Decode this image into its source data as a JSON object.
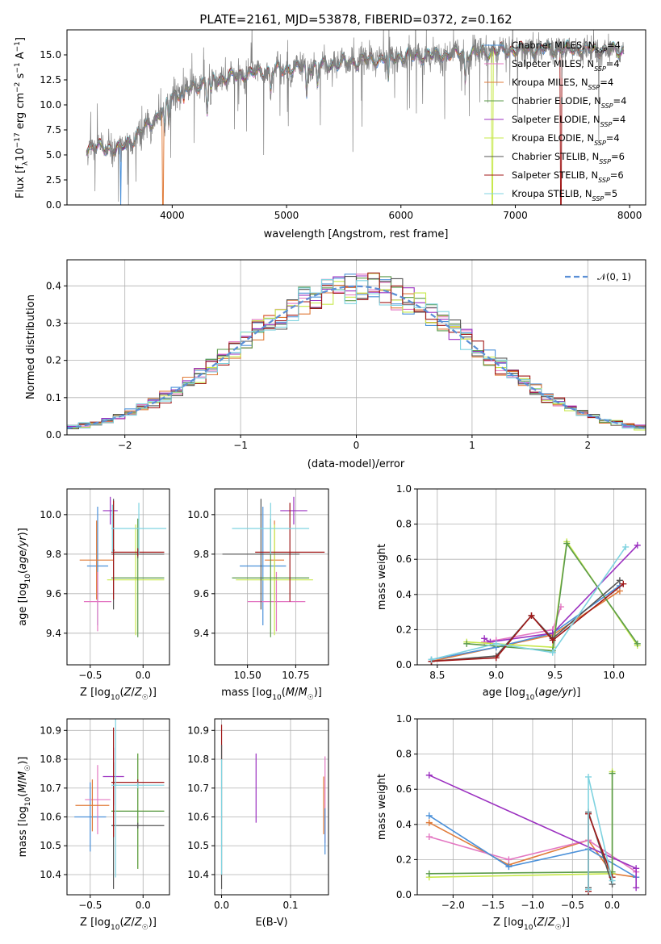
{
  "chart_data": [
    {
      "type": "line",
      "id": "spectrum",
      "title": "PLATE=2161, MJD=53878, FIBERID=0372, z=0.162",
      "xlabel": "wavelength [Angstrom, rest frame]",
      "ylabel": "Flux [f_λ 10^-17 erg cm^-2 s^-1 A^-1]",
      "xlim": [
        3080,
        8140
      ],
      "ylim": [
        0,
        17.5
      ],
      "xticks": [
        4000,
        5000,
        6000,
        7000,
        8000
      ],
      "yticks": [
        0.0,
        2.5,
        5.0,
        7.5,
        10.0,
        12.5,
        15.0
      ],
      "grid": false,
      "legend_position": "right",
      "data_color": "#808080",
      "data_wave_range": [
        3250,
        7950
      ],
      "continuum_anchors": [
        [
          3250,
          5.8
        ],
        [
          3550,
          5.6
        ],
        [
          3750,
          7.5
        ],
        [
          3900,
          9.2
        ],
        [
          4000,
          11.0
        ],
        [
          4150,
          11.6
        ],
        [
          4300,
          12.3
        ],
        [
          4600,
          13.0
        ],
        [
          5000,
          13.6
        ],
        [
          5500,
          14.2
        ],
        [
          6000,
          14.8
        ],
        [
          6500,
          15.1
        ],
        [
          7000,
          15.5
        ],
        [
          7500,
          15.6
        ],
        [
          7950,
          15.4
        ]
      ],
      "model_cutoffs": [
        {
          "series": "Chabrier MILES",
          "wave": 3550
        },
        {
          "series": "Kroupa MILES",
          "wave": 3920
        },
        {
          "series": "Kroupa ELODIE",
          "wave": 6800
        },
        {
          "series": "Salpeter STELIB",
          "wave": 7400
        }
      ],
      "series": [
        {
          "name": "Chabrier MILES, N_SSP=4",
          "color": "#4a90d9"
        },
        {
          "name": "Salpeter MILES, N_SSP=4",
          "color": "#e377c2"
        },
        {
          "name": "Kroupa MILES, N_SSP=4",
          "color": "#e07b39"
        },
        {
          "name": "Chabrier ELODIE, N_SSP=4",
          "color": "#5a9a4a"
        },
        {
          "name": "Salpeter ELODIE, N_SSP=4",
          "color": "#9b30c0"
        },
        {
          "name": "Kroupa ELODIE, N_SSP=4",
          "color": "#c7e84a"
        },
        {
          "name": "Chabrier STELIB, N_SSP=6",
          "color": "#555555"
        },
        {
          "name": "Salpeter STELIB, N_SSP=6",
          "color": "#a01818"
        },
        {
          "name": "Kroupa STELIB, N_SSP=5",
          "color": "#7fd3e0"
        }
      ]
    },
    {
      "type": "histogram",
      "id": "residuals",
      "xlabel": "(data-model)/error",
      "ylabel": "Normed distribution",
      "xlim": [
        -2.5,
        2.5
      ],
      "ylim": [
        0,
        0.47
      ],
      "xticks": [
        -2,
        -1,
        0,
        1,
        2
      ],
      "yticks": [
        0.0,
        0.1,
        0.2,
        0.3,
        0.4
      ],
      "grid": true,
      "bin_width": 0.1,
      "legend_label": "𝒩(0, 1)",
      "legend_position": "top-right",
      "gaussian_color": "#5b8fd6"
    },
    {
      "type": "errorbar",
      "id": "age-vs-Z",
      "xlabel": "Z [log10(Z/Z☉)]",
      "ylabel": "age [log10(age/yr)]",
      "xlim": [
        -0.72,
        0.25
      ],
      "ylim": [
        9.24,
        10.13
      ],
      "xticks": [
        -0.5,
        0.0
      ],
      "yticks": [
        9.4,
        9.6,
        9.8,
        10.0
      ],
      "grid": true,
      "points": [
        {
          "c": "#4a90d9",
          "x": -0.43,
          "xe": 0.1,
          "y": 9.74,
          "ye": 0.3
        },
        {
          "c": "#e377c2",
          "x": -0.43,
          "xe": 0.13,
          "y": 9.56,
          "ye": 0.15
        },
        {
          "c": "#e07b39",
          "x": -0.44,
          "xe": 0.16,
          "y": 9.77,
          "ye": 0.2
        },
        {
          "c": "#9b30c0",
          "x": -0.31,
          "xe": 0.07,
          "y": 10.02,
          "ye": 0.07
        },
        {
          "c": "#c7e84a",
          "x": -0.07,
          "xe": 0.27,
          "y": 9.67,
          "ye": 0.28
        },
        {
          "c": "#5a9a4a",
          "x": -0.05,
          "xe": 0.25,
          "y": 9.68,
          "ye": 0.3
        },
        {
          "c": "#555555",
          "x": -0.28,
          "xe": 0.01,
          "y": 9.8,
          "ye": 0.28
        },
        {
          "c": "#555555",
          "x": -0.05,
          "xe": 0.25,
          "y": 9.8,
          "ye": 0.02
        },
        {
          "c": "#a01818",
          "x": -0.05,
          "xe": 0.25,
          "y": 9.81,
          "ye": 0.02
        },
        {
          "c": "#a01818",
          "x": -0.28,
          "xe": 0.01,
          "y": 9.82,
          "ye": 0.25
        },
        {
          "c": "#7fd3e0",
          "x": -0.04,
          "xe": 0.26,
          "y": 9.93,
          "ye": 0.13
        },
        {
          "c": "#7fd3e0",
          "x": -0.29,
          "xe": 0.01,
          "y": 9.93,
          "ye": 0.12
        }
      ]
    },
    {
      "type": "errorbar",
      "id": "age-vs-mass",
      "xlabel": "mass [log10(M/M☉)]",
      "ylabel": "",
      "xlim": [
        10.33,
        10.92
      ],
      "ylim": [
        9.24,
        10.13
      ],
      "xticks": [
        10.5,
        10.75
      ],
      "yticks": [
        9.4,
        9.6,
        9.8,
        10.0
      ],
      "grid": true,
      "points": [
        {
          "c": "#4a90d9",
          "x": 10.58,
          "xe": 0.12,
          "y": 9.74,
          "ye": 0.3
        },
        {
          "c": "#e377c2",
          "x": 10.65,
          "xe": 0.15,
          "y": 9.56,
          "ye": 0.15
        },
        {
          "c": "#e07b39",
          "x": 10.64,
          "xe": 0.05,
          "y": 9.77,
          "ye": 0.2
        },
        {
          "c": "#9b30c0",
          "x": 10.74,
          "xe": 0.07,
          "y": 10.02,
          "ye": 0.07
        },
        {
          "c": "#c7e84a",
          "x": 10.64,
          "xe": 0.2,
          "y": 9.67,
          "ye": 0.28
        },
        {
          "c": "#5a9a4a",
          "x": 10.62,
          "xe": 0.2,
          "y": 9.68,
          "ye": 0.3
        },
        {
          "c": "#555555",
          "x": 10.57,
          "xe": 0.2,
          "y": 9.8,
          "ye": 0.28
        },
        {
          "c": "#a01818",
          "x": 10.72,
          "xe": 0.18,
          "y": 9.81,
          "ye": 0.25
        },
        {
          "c": "#7fd3e0",
          "x": 10.62,
          "xe": 0.2,
          "y": 9.93,
          "ye": 0.13
        }
      ]
    },
    {
      "type": "line",
      "id": "massweight-vs-age",
      "xlabel": "age  [log10(age/yr)]",
      "ylabel": "mass weight",
      "xlim": [
        8.33,
        10.27
      ],
      "ylim": [
        0.0,
        1.0
      ],
      "xticks": [
        8.5,
        9.0,
        9.5,
        10.0
      ],
      "yticks": [
        0.0,
        0.2,
        0.4,
        0.6,
        0.8,
        1.0
      ],
      "grid": true,
      "series": [
        {
          "c": "#e07b39",
          "x": [
            8.45,
            9.0,
            9.48,
            10.05
          ],
          "y": [
            0.02,
            0.1,
            0.17,
            0.42
          ]
        },
        {
          "c": "#e377c2",
          "x": [
            8.9,
            9.0,
            9.48,
            9.55
          ],
          "y": [
            0.13,
            0.14,
            0.2,
            0.33
          ]
        },
        {
          "c": "#4a90d9",
          "x": [
            8.45,
            9.0,
            9.48,
            10.05
          ],
          "y": [
            0.03,
            0.1,
            0.18,
            0.45
          ]
        },
        {
          "c": "#9b30c0",
          "x": [
            8.9,
            8.95,
            9.48,
            10.2
          ],
          "y": [
            0.15,
            0.13,
            0.18,
            0.68
          ]
        },
        {
          "c": "#c7e84a",
          "x": [
            8.75,
            9.48,
            9.6,
            10.2
          ],
          "y": [
            0.13,
            0.1,
            0.7,
            0.11
          ]
        },
        {
          "c": "#5a9a4a",
          "x": [
            8.75,
            9.48,
            9.6,
            10.2
          ],
          "y": [
            0.12,
            0.08,
            0.69,
            0.12
          ]
        },
        {
          "c": "#555555",
          "x": [
            8.45,
            9.0,
            9.3,
            9.48,
            10.05
          ],
          "y": [
            0.02,
            0.05,
            0.28,
            0.15,
            0.48
          ]
        },
        {
          "c": "#a01818",
          "x": [
            8.45,
            9.0,
            9.3,
            9.48,
            10.08
          ],
          "y": [
            0.02,
            0.04,
            0.28,
            0.14,
            0.46
          ]
        },
        {
          "c": "#7fd3e0",
          "x": [
            8.45,
            9.0,
            9.48,
            10.1
          ],
          "y": [
            0.03,
            0.12,
            0.07,
            0.67
          ]
        }
      ]
    },
    {
      "type": "errorbar",
      "id": "mass-vs-Z",
      "xlabel": "Z [log10(Z/Z☉)]",
      "ylabel": "mass [log10(M/M☉)]",
      "xlim": [
        -0.72,
        0.25
      ],
      "ylim": [
        10.33,
        10.94
      ],
      "xticks": [
        -0.5,
        0.0
      ],
      "yticks": [
        10.4,
        10.5,
        10.6,
        10.7,
        10.8,
        10.9
      ],
      "grid": true,
      "points": [
        {
          "c": "#4a90d9",
          "x": -0.5,
          "xe": 0.15,
          "y": 10.6,
          "ye": 0.12
        },
        {
          "c": "#e377c2",
          "x": -0.43,
          "xe": 0.12,
          "y": 10.66,
          "ye": 0.12
        },
        {
          "c": "#e07b39",
          "x": -0.48,
          "xe": 0.16,
          "y": 10.64,
          "ye": 0.09
        },
        {
          "c": "#9b30c0",
          "x": -0.28,
          "xe": 0.1,
          "y": 10.74,
          "ye": 0.1
        },
        {
          "c": "#c7e84a",
          "x": -0.05,
          "xe": 0.25,
          "y": 10.62,
          "ye": 0.2
        },
        {
          "c": "#5a9a4a",
          "x": -0.05,
          "xe": 0.25,
          "y": 10.62,
          "ye": 0.2
        },
        {
          "c": "#555555",
          "x": -0.28,
          "xe": 0.01,
          "y": 10.57,
          "ye": 0.22
        },
        {
          "c": "#555555",
          "x": -0.05,
          "xe": 0.25,
          "y": 10.57,
          "ye": 0.01
        },
        {
          "c": "#a01818",
          "x": -0.28,
          "xe": 0.01,
          "y": 10.72,
          "ye": 0.19
        },
        {
          "c": "#a01818",
          "x": -0.05,
          "xe": 0.25,
          "y": 10.72,
          "ye": 0.01
        },
        {
          "c": "#7fd3e0",
          "x": -0.26,
          "xe": 0.01,
          "y": 10.71,
          "ye": 0.32
        },
        {
          "c": "#7fd3e0",
          "x": -0.05,
          "xe": 0.25,
          "y": 10.71,
          "ye": 0.01
        }
      ]
    },
    {
      "type": "errorbar",
      "id": "mass-vs-ebv",
      "xlabel": "E(B-V)",
      "ylabel": "",
      "xlim": [
        -0.01,
        0.155
      ],
      "ylim": [
        10.33,
        10.94
      ],
      "xticks": [
        0.0,
        0.1
      ],
      "yticks": [
        10.4,
        10.5,
        10.6,
        10.7,
        10.8,
        10.9
      ],
      "grid": true,
      "points": [
        {
          "c": "#a01818",
          "x": 0.0,
          "y": 10.86,
          "ye": 0.06
        },
        {
          "c": "#555555",
          "x": 0.0,
          "y": 10.6,
          "ye": 0.25
        },
        {
          "c": "#7fd3e0",
          "x": 0.0,
          "y": 10.6,
          "ye": 0.2
        },
        {
          "c": "#9b30c0",
          "x": 0.05,
          "y": 10.7,
          "ye": 0.12
        },
        {
          "c": "#e07b39",
          "x": 0.148,
          "y": 10.64,
          "ye": 0.1
        },
        {
          "c": "#e377c2",
          "x": 0.15,
          "y": 10.66,
          "ye": 0.15
        },
        {
          "c": "#4a90d9",
          "x": 0.15,
          "y": 10.55,
          "ye": 0.08
        }
      ]
    },
    {
      "type": "line",
      "id": "massweight-vs-Z",
      "xlabel": "Z [log10(Z/Z☉)]",
      "ylabel": "mass weight",
      "xlim": [
        -2.45,
        0.42
      ],
      "ylim": [
        0.0,
        1.0
      ],
      "xticks": [
        -2.0,
        -1.5,
        -1.0,
        -0.5,
        0.0
      ],
      "yticks": [
        0.0,
        0.2,
        0.4,
        0.6,
        0.8,
        1.0
      ],
      "grid": true,
      "series": [
        {
          "c": "#e07b39",
          "x": [
            -2.3,
            -1.3,
            -0.3,
            0.0,
            0.3
          ],
          "y": [
            0.41,
            0.17,
            0.31,
            0.12,
            0.1
          ]
        },
        {
          "c": "#e377c2",
          "x": [
            -2.3,
            -1.3,
            -0.3,
            0.3
          ],
          "y": [
            0.33,
            0.2,
            0.31,
            0.13
          ]
        },
        {
          "c": "#4a90d9",
          "x": [
            -2.3,
            -1.3,
            -0.3,
            0.3
          ],
          "y": [
            0.45,
            0.16,
            0.26,
            0.1
          ]
        },
        {
          "c": "#9b30c0",
          "x": [
            -2.3,
            0.3,
            0.3
          ],
          "y": [
            0.68,
            0.15,
            0.04
          ]
        },
        {
          "c": "#c7e84a",
          "x": [
            -2.3,
            0.0,
            0.0
          ],
          "y": [
            0.1,
            0.12,
            0.7
          ]
        },
        {
          "c": "#5a9a4a",
          "x": [
            -2.3,
            0.0,
            0.0
          ],
          "y": [
            0.12,
            0.13,
            0.69
          ]
        },
        {
          "c": "#555555",
          "x": [
            -0.3,
            -0.3,
            0.0
          ],
          "y": [
            0.04,
            0.47,
            0.06
          ]
        },
        {
          "c": "#a01818",
          "x": [
            -0.3,
            -0.3,
            0.0
          ],
          "y": [
            0.02,
            0.46,
            0.1
          ]
        },
        {
          "c": "#7fd3e0",
          "x": [
            -0.3,
            -0.3,
            0.0
          ],
          "y": [
            0.03,
            0.67,
            0.08
          ]
        }
      ]
    }
  ]
}
